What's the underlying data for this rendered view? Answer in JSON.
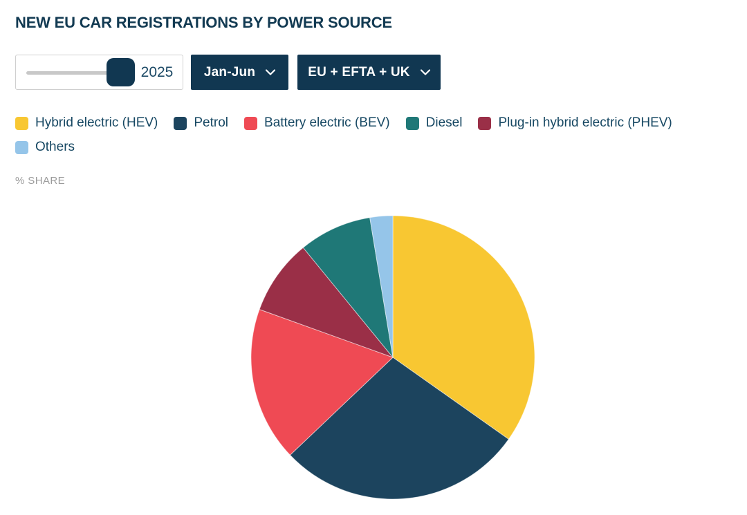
{
  "title": "NEW EU CAR REGISTRATIONS BY POWER SOURCE",
  "controls": {
    "year_slider": {
      "value": "2025"
    },
    "period_dropdown": {
      "label": "Jan-Jun",
      "icon": "chevron-down"
    },
    "region_dropdown": {
      "label": "EU + EFTA + UK",
      "icon": "chevron-down"
    }
  },
  "axis_label": "% SHARE",
  "legend": {
    "items": [
      {
        "label": "Hybrid electric (HEV)",
        "color": "#F8C732"
      },
      {
        "label": "Petrol",
        "color": "#1C445E"
      },
      {
        "label": "Battery electric (BEV)",
        "color": "#EF4A54"
      },
      {
        "label": "Diesel",
        "color": "#1F7877"
      },
      {
        "label": "Plug-in hybrid electric (PHEV)",
        "color": "#9A2F47"
      },
      {
        "label": "Others",
        "color": "#95C5E9"
      }
    ]
  },
  "chart_data": {
    "type": "pie",
    "title": "NEW EU CAR REGISTRATIONS BY POWER SOURCE",
    "unit": "% share",
    "year": "2025",
    "period": "Jan-Jun",
    "region": "EU + EFTA + UK",
    "start_angle_deg": 0,
    "direction": "clockwise",
    "slices": [
      {
        "label": "Hybrid electric (HEV)",
        "value": 34.8,
        "color": "#F8C732"
      },
      {
        "label": "Petrol",
        "value": 28.1,
        "color": "#1C445E"
      },
      {
        "label": "Battery electric (BEV)",
        "value": 17.6,
        "color": "#EF4A54"
      },
      {
        "label": "Plug-in hybrid electric (PHEV)",
        "value": 8.6,
        "color": "#9A2F47"
      },
      {
        "label": "Diesel",
        "value": 8.3,
        "color": "#1F7877"
      },
      {
        "label": "Others",
        "value": 2.6,
        "color": "#95C5E9"
      }
    ]
  },
  "colors": {
    "brand_navy": "#113751",
    "title_text": "#123A52",
    "legend_text": "#174863",
    "muted_text": "#9b9b9b",
    "slider_track": "#c8c8c8"
  }
}
